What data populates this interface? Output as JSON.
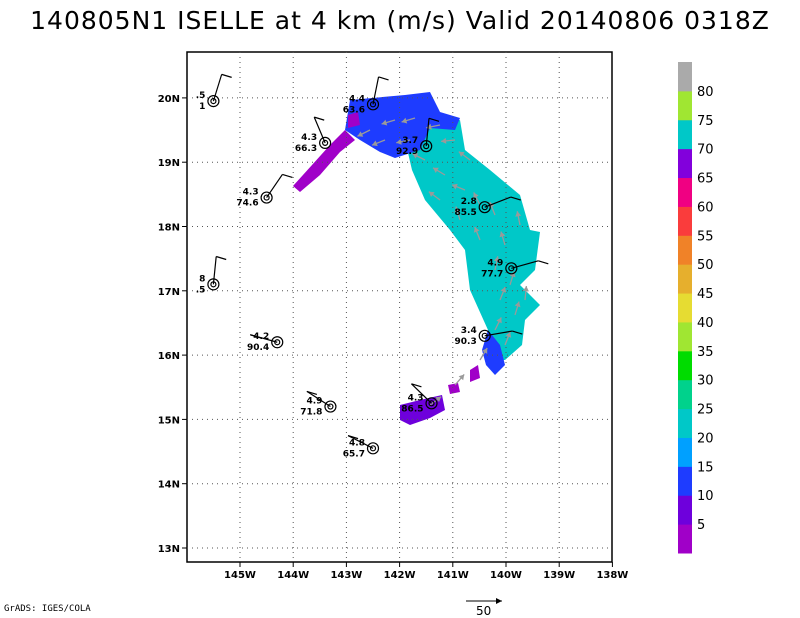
{
  "title": "140805N1 ISELLE at 4 km (m/s) Valid 20140806 0318Z",
  "credit": "GrADS: IGES/COLA",
  "reference_vector": {
    "value": 50,
    "label": "50"
  },
  "map": {
    "lon_ticks": [
      {
        "lon": -145,
        "label": "145W"
      },
      {
        "lon": -144,
        "label": "144W"
      },
      {
        "lon": -143,
        "label": "143W"
      },
      {
        "lon": -142,
        "label": "142W"
      },
      {
        "lon": -141,
        "label": "141W"
      },
      {
        "lon": -140,
        "label": "140W"
      },
      {
        "lon": -139,
        "label": "139W"
      },
      {
        "lon": -138,
        "label": "138W"
      }
    ],
    "lat_ticks": [
      {
        "lat": 13,
        "label": "13N"
      },
      {
        "lat": 14,
        "label": "14N"
      },
      {
        "lat": 15,
        "label": "15N"
      },
      {
        "lat": 16,
        "label": "16N"
      },
      {
        "lat": 17,
        "label": "17N"
      },
      {
        "lat": 18,
        "label": "18N"
      },
      {
        "lat": 19,
        "label": "19N"
      },
      {
        "lat": 20,
        "label": "20N"
      }
    ]
  },
  "colorbar": {
    "labels": [
      "5",
      "10",
      "15",
      "20",
      "25",
      "30",
      "35",
      "40",
      "45",
      "50",
      "55",
      "60",
      "65",
      "70",
      "75",
      "80"
    ],
    "colors": [
      "#a000c8",
      "#6e00dc",
      "#1e3cff",
      "#00a0ff",
      "#00c8c8",
      "#00d28c",
      "#00dc00",
      "#a0e632",
      "#e6dc32",
      "#e6af2d",
      "#f08228",
      "#fa3c3c",
      "#f00082",
      "#8200dc",
      "#00c8c8",
      "#a0e632",
      "#aaaaaa"
    ]
  },
  "observations": [
    {
      "lon": -145.5,
      "lat": 19.95,
      "top": ".5",
      "bottom": "1"
    },
    {
      "lon": -142.5,
      "lat": 19.9,
      "top": "4.4",
      "bottom": "63.6"
    },
    {
      "lon": -143.4,
      "lat": 19.3,
      "top": "4.3",
      "bottom": "66.3"
    },
    {
      "lon": -141.5,
      "lat": 19.25,
      "top": "3.7",
      "bottom": "92.9"
    },
    {
      "lon": -144.5,
      "lat": 18.45,
      "top": "4.3",
      "bottom": "74.6"
    },
    {
      "lon": -140.4,
      "lat": 18.3,
      "top": "2.8",
      "bottom": "85.5"
    },
    {
      "lon": -145.5,
      "lat": 17.1,
      "top": "8",
      "bottom": ".5"
    },
    {
      "lon": -139.9,
      "lat": 17.35,
      "top": "4.9",
      "bottom": "77.7"
    },
    {
      "lon": -144.3,
      "lat": 16.2,
      "top": "4.2",
      "bottom": "90.4"
    },
    {
      "lon": -140.4,
      "lat": 16.3,
      "top": "3.4",
      "bottom": "90.3"
    },
    {
      "lon": -143.3,
      "lat": 15.2,
      "top": "4.9",
      "bottom": "71.8"
    },
    {
      "lon": -141.4,
      "lat": 15.25,
      "top": "4.3",
      "bottom": "86.5"
    },
    {
      "lon": -142.5,
      "lat": 14.55,
      "top": "4.8",
      "bottom": "65.7"
    }
  ]
}
